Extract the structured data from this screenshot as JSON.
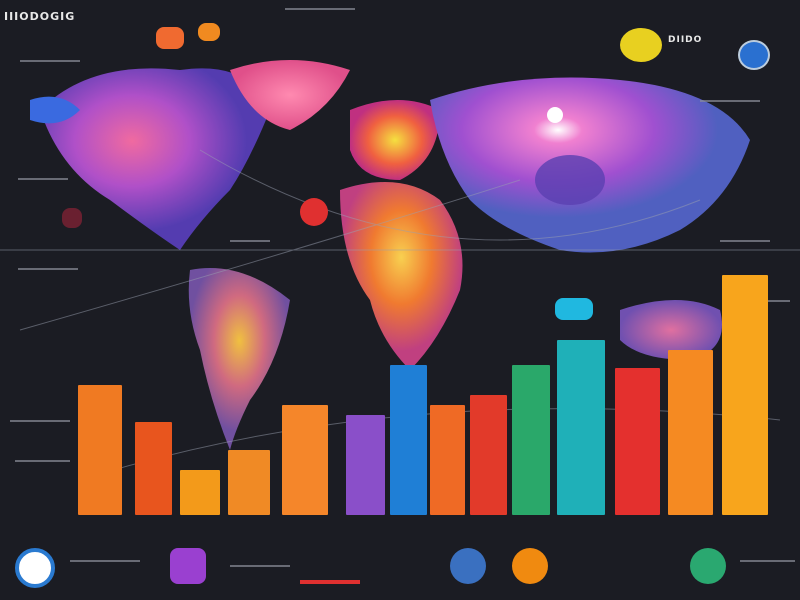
{
  "header": {
    "title": "IIIODOGIG",
    "right_label": "DIIDO"
  },
  "colors": {
    "background": "#1b1c23",
    "bars": [
      "#f07a22",
      "#e8551e",
      "#f39a1a",
      "#f08a25",
      "#f5862a",
      "#8a4fc9",
      "#1f7fd6",
      "#ef6a25",
      "#e23a2a",
      "#2aa86a",
      "#1fb0b8",
      "#e4302e",
      "#f58a22",
      "#f8a51c"
    ]
  },
  "icons": [
    "logo-circle-icon",
    "app-icon-purple",
    "fire-icon",
    "orange-circle-icon",
    "green-leaf-icon",
    "globe-icon"
  ]
}
